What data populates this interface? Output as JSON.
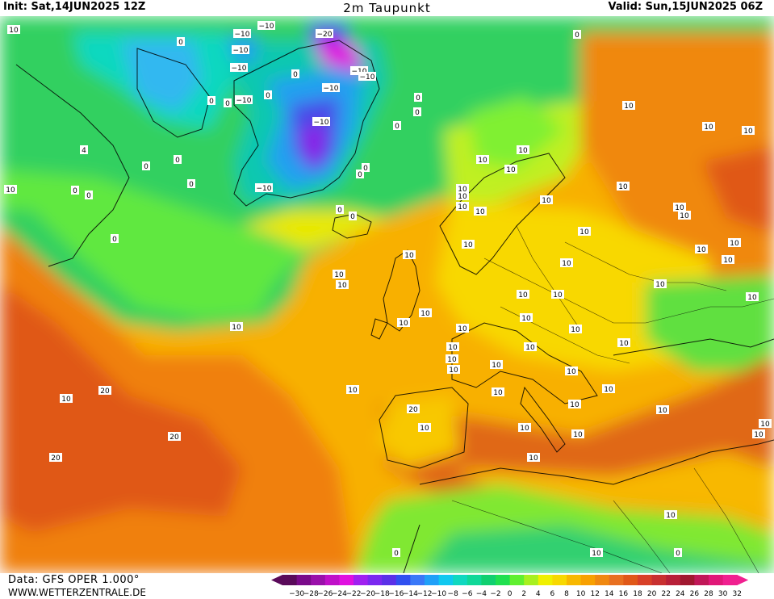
{
  "header": {
    "init": "Init: Sat,14JUN2025 12Z",
    "title": "2m Taupunkt",
    "valid": "Valid: Sun,15JUN2025 06Z"
  },
  "footer": {
    "data_source": "Data: GFS OPER 1.000°",
    "website": "WWW.WETTERZENTRALE.DE"
  },
  "legend": {
    "colors": [
      "#5a0a5a",
      "#7a0a8a",
      "#9a10aa",
      "#c010c8",
      "#e010e0",
      "#a020f0",
      "#7a28f0",
      "#5a30e8",
      "#3050f0",
      "#3a78f8",
      "#20a0f8",
      "#10c8f0",
      "#10d8c0",
      "#10d898",
      "#10d070",
      "#20e050",
      "#60f030",
      "#a8f020",
      "#f0f000",
      "#f8d800",
      "#f8b800",
      "#f8a000",
      "#f08810",
      "#e87020",
      "#e05818",
      "#d84028",
      "#c83030",
      "#b82038",
      "#a01830",
      "#c01858",
      "#e01878",
      "#f02090"
    ],
    "tick_labels": [
      "-30",
      "-28",
      "-26",
      "-24",
      "-22",
      "-20",
      "-18",
      "-16",
      "-14",
      "-12",
      "-10",
      "-8",
      "-6",
      "-4",
      "-2",
      "0",
      "2",
      "4",
      "6",
      "8",
      "10",
      "12",
      "14",
      "16",
      "18",
      "20",
      "22",
      "24",
      "26",
      "28",
      "30",
      "32"
    ]
  },
  "map": {
    "contour_labels": [
      "10",
      "0",
      "-10",
      "-10",
      "-20",
      "-10",
      "-10",
      "-10",
      "-10",
      "-10",
      "-10",
      "-10",
      "-10",
      "0",
      "0",
      "0",
      "0",
      "0",
      "0",
      "0",
      "0",
      "4",
      "0",
      "0",
      "10",
      "0",
      "0",
      "0",
      "0",
      "10",
      "10",
      "10",
      "10",
      "10",
      "10",
      "10",
      "10",
      "10",
      "10",
      "10",
      "10",
      "10",
      "10",
      "10",
      "10",
      "10",
      "10",
      "10",
      "10",
      "10",
      "10",
      "10",
      "10",
      "10",
      "10",
      "10",
      "10",
      "10",
      "10",
      "10",
      "10",
      "10",
      "10",
      "20",
      "20",
      "20",
      "20",
      "10",
      "10",
      "10",
      "10",
      "10",
      "10",
      "10",
      "10",
      "10",
      "0",
      "0",
      "0"
    ]
  }
}
